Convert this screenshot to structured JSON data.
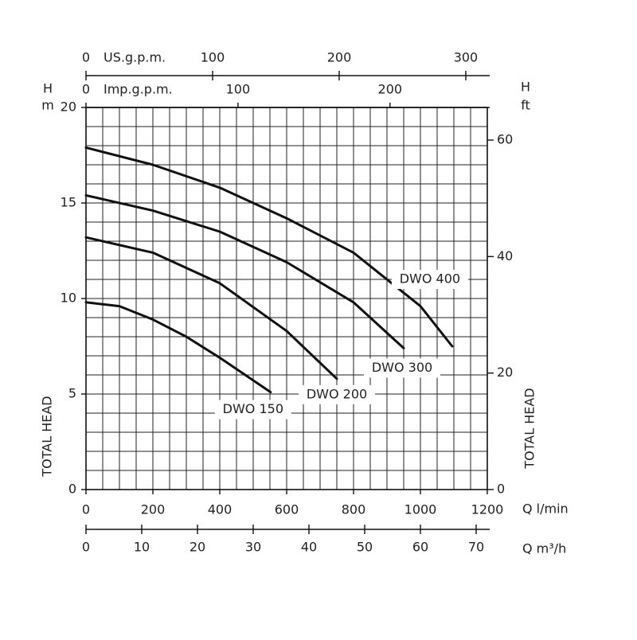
{
  "chart_data": {
    "type": "line",
    "x_label": "Q l/min",
    "xlim": [
      0,
      1200
    ],
    "xticks": [
      0,
      200,
      400,
      600,
      800,
      1000,
      1200
    ],
    "y_label_top": "H",
    "y_unit": "m",
    "y_label": "TOTAL HEAD",
    "ylim": [
      0,
      20
    ],
    "yticks": [
      0,
      5,
      10,
      15,
      20
    ],
    "y2_label_top": "H",
    "y2_unit": "ft",
    "y2_label": "TOTAL HEAD",
    "y2lim": [
      0,
      65.6
    ],
    "y2ticks": [
      0,
      20,
      40,
      60
    ],
    "top_axes": [
      {
        "label": "US.g.p.m.",
        "lim": [
          0,
          317
        ],
        "ticks": [
          0,
          100,
          200,
          300
        ]
      },
      {
        "label": "Imp.g.p.m.",
        "lim": [
          0,
          264
        ],
        "ticks": [
          0,
          100,
          200
        ]
      }
    ],
    "bottom_axis2": {
      "label": "Q m³/h",
      "lim": [
        0,
        72
      ],
      "ticks": [
        0,
        10,
        20,
        30,
        40,
        50,
        60,
        70
      ]
    },
    "grid": true,
    "color": "#111111",
    "series": [
      {
        "name": "DWO 400",
        "x": [
          0,
          200,
          400,
          600,
          800,
          1000,
          1095
        ],
        "y": [
          17.9,
          17.0,
          15.8,
          14.2,
          12.4,
          9.6,
          7.5
        ]
      },
      {
        "name": "DWO 300",
        "x": [
          0,
          200,
          400,
          600,
          800,
          950
        ],
        "y": [
          15.4,
          14.6,
          13.5,
          11.9,
          9.8,
          7.4
        ]
      },
      {
        "name": "DWO 200",
        "x": [
          0,
          200,
          400,
          600,
          750
        ],
        "y": [
          13.2,
          12.4,
          10.8,
          8.3,
          5.8
        ]
      },
      {
        "name": "DWO 150",
        "x": [
          0,
          100,
          200,
          300,
          400,
          552
        ],
        "y": [
          9.8,
          9.6,
          8.9,
          8.0,
          6.9,
          5.1
        ]
      }
    ]
  }
}
